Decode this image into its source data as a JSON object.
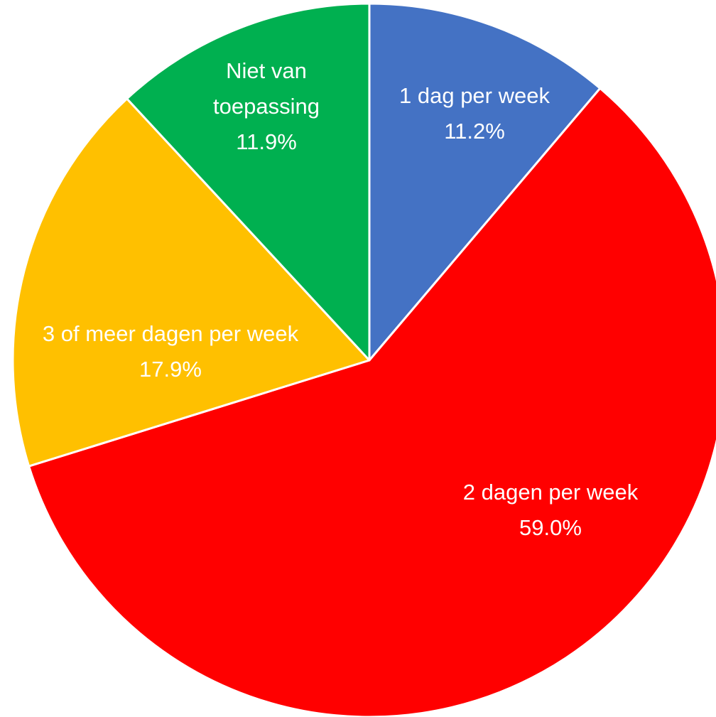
{
  "chart_data": {
    "type": "pie",
    "categories": [
      "1 dag per week",
      "2 dagen per week",
      "3 of meer dagen per week",
      "Niet van toepassing"
    ],
    "values": [
      11.2,
      59.0,
      17.9,
      11.9
    ],
    "value_labels": [
      "11.2%",
      "59.0%",
      "17.9%",
      "11.9%"
    ],
    "colors": [
      "#4472c4",
      "#ff0000",
      "#ffc000",
      "#00b050"
    ]
  }
}
